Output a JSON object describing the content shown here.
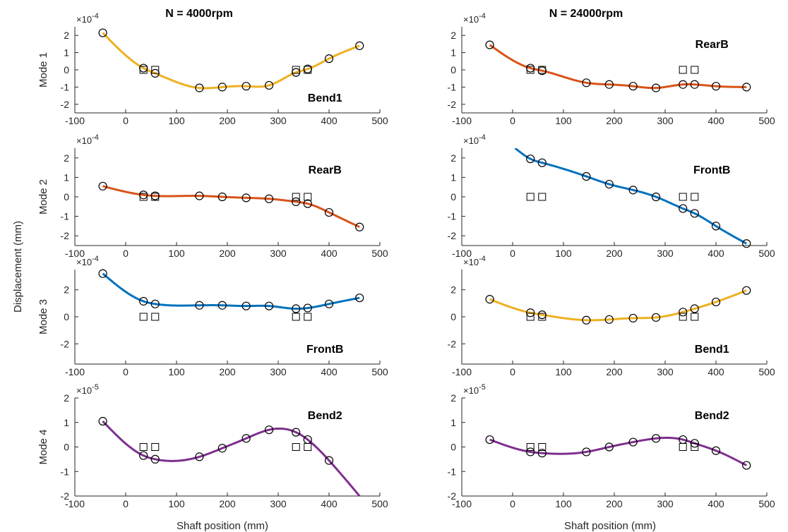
{
  "figure": {
    "ylabel": "Displacement (mm)",
    "xlabel": "Shaft position (mm)",
    "column_titles": [
      "N = 4000rpm",
      "N = 24000rpm"
    ],
    "row_labels": [
      "Mode 1",
      "Mode 2",
      "Mode 3",
      "Mode 4"
    ]
  },
  "colors": {
    "Bend1": "#EDB120",
    "RearB": "#D95319",
    "FrontB": "#0072BD",
    "Bend2": "#7E2F8E",
    "axis": "#262626",
    "marker": "#000000"
  },
  "chart_data": [
    {
      "type": "line",
      "panel": "4000rpm-mode1",
      "row": 0,
      "col": 0,
      "title": "N = 4000rpm",
      "ylabel": "Mode 1",
      "annotation": "Bend1",
      "series_color": "Bend1",
      "xlim": [
        -100,
        500
      ],
      "xticks": [
        -100,
        0,
        100,
        200,
        300,
        400,
        500
      ],
      "ylim": [
        -2.5,
        2.5
      ],
      "yticks": [
        -2,
        -1,
        0,
        1,
        2
      ],
      "exponent": "-4",
      "circles": {
        "x": [
          -45,
          35,
          58,
          145,
          190,
          237,
          282,
          335,
          358,
          400,
          460
        ],
        "y": [
          2.15,
          0.1,
          -0.2,
          -1.05,
          -1.0,
          -0.95,
          -0.9,
          -0.15,
          0.05,
          0.65,
          1.4
        ]
      },
      "squares": {
        "x": [
          35,
          58,
          335,
          358
        ],
        "y": [
          0,
          0,
          0,
          0
        ]
      },
      "curve_x_range": [
        -45,
        460
      ]
    },
    {
      "type": "line",
      "panel": "24000rpm-mode1",
      "row": 0,
      "col": 1,
      "title": "N = 24000rpm",
      "ylabel": "",
      "annotation": "RearB",
      "series_color": "RearB",
      "xlim": [
        -100,
        500
      ],
      "xticks": [
        -100,
        0,
        100,
        200,
        300,
        400,
        500
      ],
      "ylim": [
        -2.5,
        2.5
      ],
      "yticks": [
        -2,
        -1,
        0,
        1,
        2
      ],
      "exponent": "-4",
      "circles": {
        "x": [
          -45,
          35,
          58,
          145,
          190,
          237,
          282,
          335,
          358,
          400,
          460
        ],
        "y": [
          1.45,
          0.1,
          -0.05,
          -0.75,
          -0.85,
          -0.95,
          -1.05,
          -0.85,
          -0.85,
          -0.95,
          -1.0
        ]
      },
      "squares": {
        "x": [
          35,
          58,
          335,
          358
        ],
        "y": [
          0,
          0,
          0,
          0
        ]
      },
      "curve_x_range": [
        -45,
        460
      ]
    },
    {
      "type": "line",
      "panel": "4000rpm-mode2",
      "row": 1,
      "col": 0,
      "title": "",
      "ylabel": "Mode 2",
      "annotation": "RearB",
      "series_color": "RearB",
      "xlim": [
        -100,
        500
      ],
      "xticks": [
        -100,
        0,
        100,
        200,
        300,
        400,
        500
      ],
      "ylim": [
        -2.5,
        2.5
      ],
      "yticks": [
        -2,
        -1,
        0,
        1,
        2
      ],
      "exponent": "-4",
      "circles": {
        "x": [
          -45,
          35,
          58,
          145,
          190,
          237,
          282,
          335,
          358,
          400,
          460
        ],
        "y": [
          0.55,
          0.1,
          0.05,
          0.05,
          0.0,
          -0.05,
          -0.1,
          -0.25,
          -0.35,
          -0.8,
          -1.55
        ]
      },
      "squares": {
        "x": [
          35,
          58,
          335,
          358
        ],
        "y": [
          0,
          0,
          0,
          0
        ]
      },
      "curve_x_range": [
        -45,
        460
      ]
    },
    {
      "type": "line",
      "panel": "24000rpm-mode2",
      "row": 1,
      "col": 1,
      "title": "",
      "ylabel": "",
      "annotation": "FrontB",
      "series_color": "FrontB",
      "xlim": [
        -100,
        500
      ],
      "xticks": [
        -100,
        0,
        100,
        200,
        300,
        400,
        500
      ],
      "ylim": [
        -2.5,
        2.5
      ],
      "yticks": [
        -2,
        -1,
        0,
        1,
        2
      ],
      "exponent": "-4",
      "circles": {
        "x": [
          35,
          58,
          145,
          190,
          237,
          282,
          335,
          358,
          400,
          460
        ],
        "y": [
          1.95,
          1.75,
          1.05,
          0.65,
          0.35,
          0.0,
          -0.6,
          -0.85,
          -1.5,
          -2.4
        ]
      },
      "squares": {
        "x": [
          35,
          58,
          335,
          358
        ],
        "y": [
          0,
          0,
          0,
          0
        ]
      },
      "curve_x_range": [
        5,
        460
      ]
    },
    {
      "type": "line",
      "panel": "4000rpm-mode3",
      "row": 2,
      "col": 0,
      "title": "",
      "ylabel": "Mode 3",
      "annotation": "FrontB",
      "series_color": "FrontB",
      "xlim": [
        -100,
        500
      ],
      "xticks": [
        -100,
        0,
        100,
        200,
        300,
        400,
        500
      ],
      "ylim": [
        -3.5,
        3.5
      ],
      "yticks": [
        -2,
        0,
        2
      ],
      "exponent": "-4",
      "circles": {
        "x": [
          -45,
          35,
          58,
          145,
          190,
          237,
          282,
          335,
          358,
          400,
          460
        ],
        "y": [
          3.2,
          1.15,
          0.95,
          0.85,
          0.85,
          0.8,
          0.8,
          0.6,
          0.65,
          0.95,
          1.4
        ]
      },
      "squares": {
        "x": [
          35,
          58,
          335,
          358
        ],
        "y": [
          0,
          0,
          0,
          0
        ]
      },
      "curve_x_range": [
        -45,
        460
      ]
    },
    {
      "type": "line",
      "panel": "24000rpm-mode3",
      "row": 2,
      "col": 1,
      "title": "",
      "ylabel": "",
      "annotation": "Bend1",
      "series_color": "Bend1",
      "xlim": [
        -100,
        500
      ],
      "xticks": [
        -100,
        0,
        100,
        200,
        300,
        400,
        500
      ],
      "ylim": [
        -3.5,
        3.5
      ],
      "yticks": [
        -2,
        0,
        2
      ],
      "exponent": "-4",
      "circles": {
        "x": [
          -45,
          35,
          58,
          145,
          190,
          237,
          282,
          335,
          358,
          400,
          460
        ],
        "y": [
          1.3,
          0.3,
          0.15,
          -0.25,
          -0.2,
          -0.1,
          -0.05,
          0.35,
          0.6,
          1.1,
          1.95
        ]
      },
      "squares": {
        "x": [
          35,
          58,
          335,
          358
        ],
        "y": [
          0,
          0,
          0,
          0
        ]
      },
      "curve_x_range": [
        -45,
        460
      ]
    },
    {
      "type": "line",
      "panel": "4000rpm-mode4",
      "row": 3,
      "col": 0,
      "title": "",
      "ylabel": "Mode 4",
      "annotation": "Bend2",
      "series_color": "Bend2",
      "xlim": [
        -100,
        500
      ],
      "xticks": [
        -100,
        0,
        100,
        200,
        300,
        400,
        500
      ],
      "ylim": [
        -2,
        2
      ],
      "yticks": [
        -2,
        -1,
        0,
        1,
        2
      ],
      "exponent": "-5",
      "circles": {
        "x": [
          -45,
          35,
          58,
          145,
          190,
          237,
          282,
          335,
          358,
          400
        ],
        "y": [
          1.05,
          -0.35,
          -0.5,
          -0.4,
          -0.05,
          0.35,
          0.7,
          0.6,
          0.3,
          -0.55
        ]
      },
      "squares": {
        "x": [
          35,
          58,
          335,
          358
        ],
        "y": [
          0,
          0,
          0,
          0
        ]
      },
      "curve_end": {
        "x": 460,
        "y": -2.0
      },
      "curve_x_range": [
        -45,
        460
      ]
    },
    {
      "type": "line",
      "panel": "24000rpm-mode4",
      "row": 3,
      "col": 1,
      "title": "",
      "ylabel": "",
      "annotation": "Bend2",
      "series_color": "Bend2",
      "xlim": [
        -100,
        500
      ],
      "xticks": [
        -100,
        0,
        100,
        200,
        300,
        400,
        500
      ],
      "ylim": [
        -2,
        2
      ],
      "yticks": [
        -2,
        -1,
        0,
        1,
        2
      ],
      "exponent": "-5",
      "circles": {
        "x": [
          -45,
          35,
          58,
          145,
          190,
          237,
          282,
          335,
          358,
          400,
          460
        ],
        "y": [
          0.3,
          -0.2,
          -0.25,
          -0.2,
          0.0,
          0.2,
          0.35,
          0.3,
          0.15,
          -0.15,
          -0.75
        ]
      },
      "squares": {
        "x": [
          35,
          58,
          335,
          358
        ],
        "y": [
          0,
          0,
          0,
          0
        ]
      },
      "curve_x_range": [
        -45,
        460
      ]
    }
  ]
}
